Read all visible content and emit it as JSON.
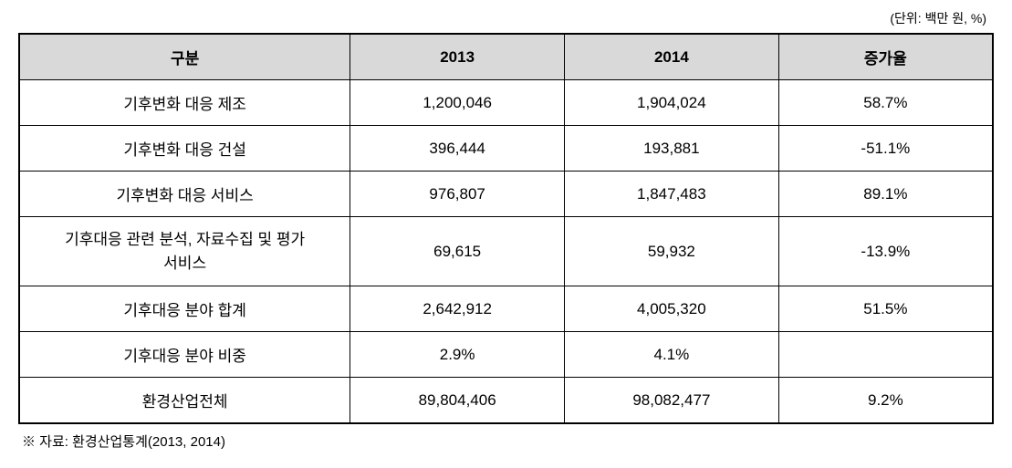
{
  "unit_note": "(단위: 백만 원, %)",
  "table": {
    "headers": {
      "category": "구분",
      "year1": "2013",
      "year2": "2014",
      "rate": "증가율"
    },
    "rows": [
      {
        "category": "기후변화 대응 제조",
        "year1": "1,200,046",
        "year2": "1,904,024",
        "rate": "58.7%"
      },
      {
        "category": "기후변화 대응 건설",
        "year1": "396,444",
        "year2": "193,881",
        "rate": "-51.1%"
      },
      {
        "category": "기후변화 대응 서비스",
        "year1": "976,807",
        "year2": "1,847,483",
        "rate": "89.1%"
      },
      {
        "category": "기후대응 관련 분석, 자료수집 및 평가\n서비스",
        "year1": "69,615",
        "year2": "59,932",
        "rate": "-13.9%"
      },
      {
        "category": "기후대응 분야 합계",
        "year1": "2,642,912",
        "year2": "4,005,320",
        "rate": "51.5%"
      },
      {
        "category": "기후대응 분야 비중",
        "year1": "2.9%",
        "year2": "4.1%",
        "rate": ""
      },
      {
        "category": "환경산업전체",
        "year1": "89,804,406",
        "year2": "98,082,477",
        "rate": "9.2%"
      }
    ],
    "column_widths": {
      "category": "34%",
      "year1": "22%",
      "year2": "22%",
      "rate": "22%"
    },
    "styling": {
      "header_bg": "#d9d9d9",
      "border_color": "#000000",
      "outer_border_width": "2px",
      "inner_border_width": "1px",
      "font_size_cell": 17,
      "font_size_note": 14,
      "font_size_source": 15,
      "text_color": "#000000",
      "background_color": "#ffffff"
    }
  },
  "source_note": "※ 자료: 환경산업통계(2013, 2014)"
}
